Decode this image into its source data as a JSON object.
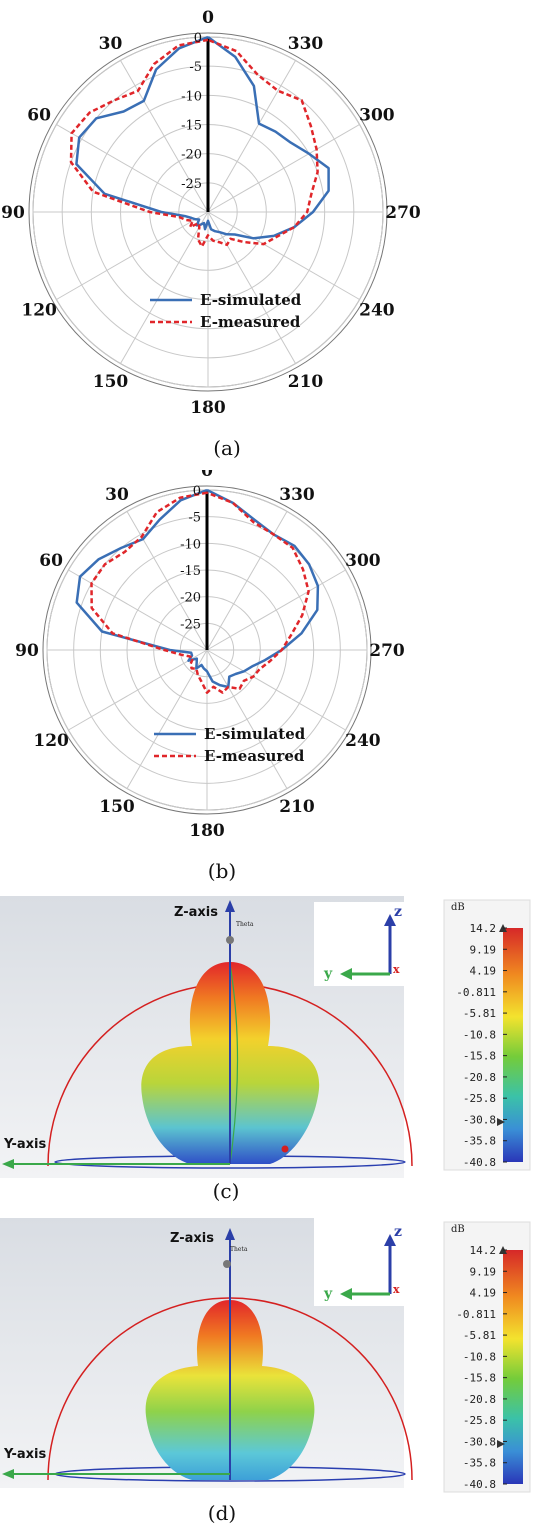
{
  "chart_data": [
    {
      "type": "polar",
      "panel": "a",
      "caption": "(a)",
      "angular_ticks": [
        "0",
        "30",
        "60",
        "90",
        "120",
        "150",
        "180",
        "210",
        "240",
        "270",
        "300",
        "330"
      ],
      "angle_direction": "counter-clockwise",
      "radial_ticks": [
        "0",
        "-5",
        "-10",
        "-15",
        "-20",
        "-25"
      ],
      "rlim": [
        -30,
        0
      ],
      "legend_position": "bottom-center",
      "series": [
        {
          "name": "E-simulated",
          "color": "#3a6fb5",
          "style": "solid",
          "theta": [
            0,
            10,
            20,
            30,
            40,
            50,
            60,
            70,
            80,
            90,
            100,
            110,
            120,
            130,
            140,
            150,
            160,
            170,
            180,
            190,
            200,
            210,
            220,
            230,
            240,
            250,
            260,
            270,
            280,
            290,
            300,
            310,
            320,
            330,
            340,
            350
          ],
          "r": [
            0,
            -1.5,
            -4,
            -8,
            -7.5,
            -5,
            -4.5,
            -6,
            -12,
            -22,
            -26,
            -27,
            -27.5,
            -28,
            -27,
            -27.5,
            -28,
            -27,
            -28.5,
            -27,
            -26.5,
            -26,
            -25,
            -24,
            -21,
            -18,
            -15,
            -12,
            -9,
            -8,
            -10,
            -11.5,
            -12,
            -12.5,
            -7,
            -3
          ]
        },
        {
          "name": "E-measured",
          "color": "#e0262a",
          "style": "dashed",
          "theta": [
            0,
            10,
            20,
            30,
            40,
            50,
            60,
            70,
            80,
            90,
            100,
            110,
            120,
            130,
            140,
            150,
            160,
            170,
            180,
            190,
            200,
            210,
            220,
            230,
            240,
            250,
            260,
            270,
            280,
            290,
            300,
            310,
            320,
            330,
            340,
            350
          ],
          "r": [
            -0.5,
            -1,
            -3,
            -6,
            -5,
            -3.5,
            -3,
            -5,
            -10,
            -20,
            -25,
            -26,
            -27,
            -26,
            -27.5,
            -27,
            -25,
            -24,
            -26,
            -25,
            -24.5,
            -23.5,
            -24,
            -22,
            -19,
            -17.5,
            -15,
            -13,
            -12,
            -10,
            -8.5,
            -7,
            -5,
            -6,
            -5,
            -2
          ]
        }
      ]
    },
    {
      "type": "polar",
      "panel": "b",
      "caption": "(b)",
      "angular_ticks": [
        "0",
        "30",
        "60",
        "90",
        "120",
        "150",
        "180",
        "210",
        "240",
        "270",
        "300",
        "330"
      ],
      "angle_direction": "counter-clockwise",
      "radial_ticks": [
        "0",
        "-5",
        "-10",
        "-15",
        "-20",
        "-25"
      ],
      "rlim": [
        -30,
        0
      ],
      "legend_position": "bottom-center",
      "series": [
        {
          "name": "E-simulated",
          "color": "#3a6fb5",
          "style": "solid",
          "theta": [
            0,
            10,
            20,
            30,
            40,
            50,
            60,
            70,
            80,
            90,
            100,
            110,
            120,
            130,
            140,
            150,
            160,
            170,
            180,
            190,
            200,
            210,
            220,
            230,
            240,
            250,
            260,
            270,
            280,
            290,
            300,
            310,
            320,
            330,
            340,
            350
          ],
          "r": [
            0,
            -1.5,
            -4,
            -6,
            -5,
            -3.5,
            -2.5,
            -4,
            -10,
            -23,
            -27,
            -27,
            -26,
            -27.5,
            -27,
            -26,
            -27,
            -26.5,
            -26,
            -24,
            -23,
            -22,
            -23.5,
            -23,
            -22,
            -21,
            -19,
            -16,
            -12,
            -8,
            -6,
            -5,
            -4.5,
            -5,
            -4,
            -2
          ]
        },
        {
          "name": "E-measured",
          "color": "#e0262a",
          "style": "dashed",
          "theta": [
            0,
            10,
            20,
            30,
            40,
            50,
            60,
            70,
            80,
            90,
            100,
            110,
            120,
            130,
            140,
            150,
            160,
            170,
            180,
            190,
            200,
            210,
            220,
            230,
            240,
            250,
            260,
            270,
            280,
            290,
            300,
            310,
            320,
            330,
            340,
            350
          ],
          "r": [
            -0.5,
            -1,
            -2.5,
            -5.5,
            -6,
            -5,
            -5,
            -7,
            -12,
            -22,
            -25,
            -26.5,
            -27,
            -26,
            -25.5,
            -26,
            -25,
            -24,
            -22,
            -23,
            -21.5,
            -22,
            -20.5,
            -21,
            -20,
            -19.5,
            -18,
            -16,
            -14,
            -11,
            -8,
            -6.5,
            -5,
            -5,
            -4.5,
            -2
          ]
        }
      ]
    }
  ],
  "panel_c": {
    "caption": "(c)",
    "z_axis_label": "Z-axis",
    "y_axis_label": "Y-axis",
    "theta_label": "Theta",
    "triad_z": "z",
    "triad_y": "y",
    "triad_x": "x",
    "colorbar_unit": "dB",
    "colorbar_ticks": [
      "14.2",
      "9.19",
      "4.19",
      "-0.811",
      "-5.81",
      "-10.8",
      "-15.8",
      "-20.8",
      "-25.8",
      "-30.8",
      "-35.8",
      "-40.8"
    ]
  },
  "panel_d": {
    "caption": "(d)",
    "z_axis_label": "Z-axis",
    "y_axis_label": "Y-axis",
    "theta_label": "Theta",
    "triad_z": "z",
    "triad_y": "y",
    "triad_x": "x",
    "colorbar_unit": "dB",
    "colorbar_ticks": [
      "14.2",
      "9.19",
      "4.19",
      "-0.811",
      "-5.81",
      "-10.8",
      "-15.8",
      "-20.8",
      "-25.8",
      "-30.8",
      "-35.8",
      "-40.8"
    ]
  }
}
